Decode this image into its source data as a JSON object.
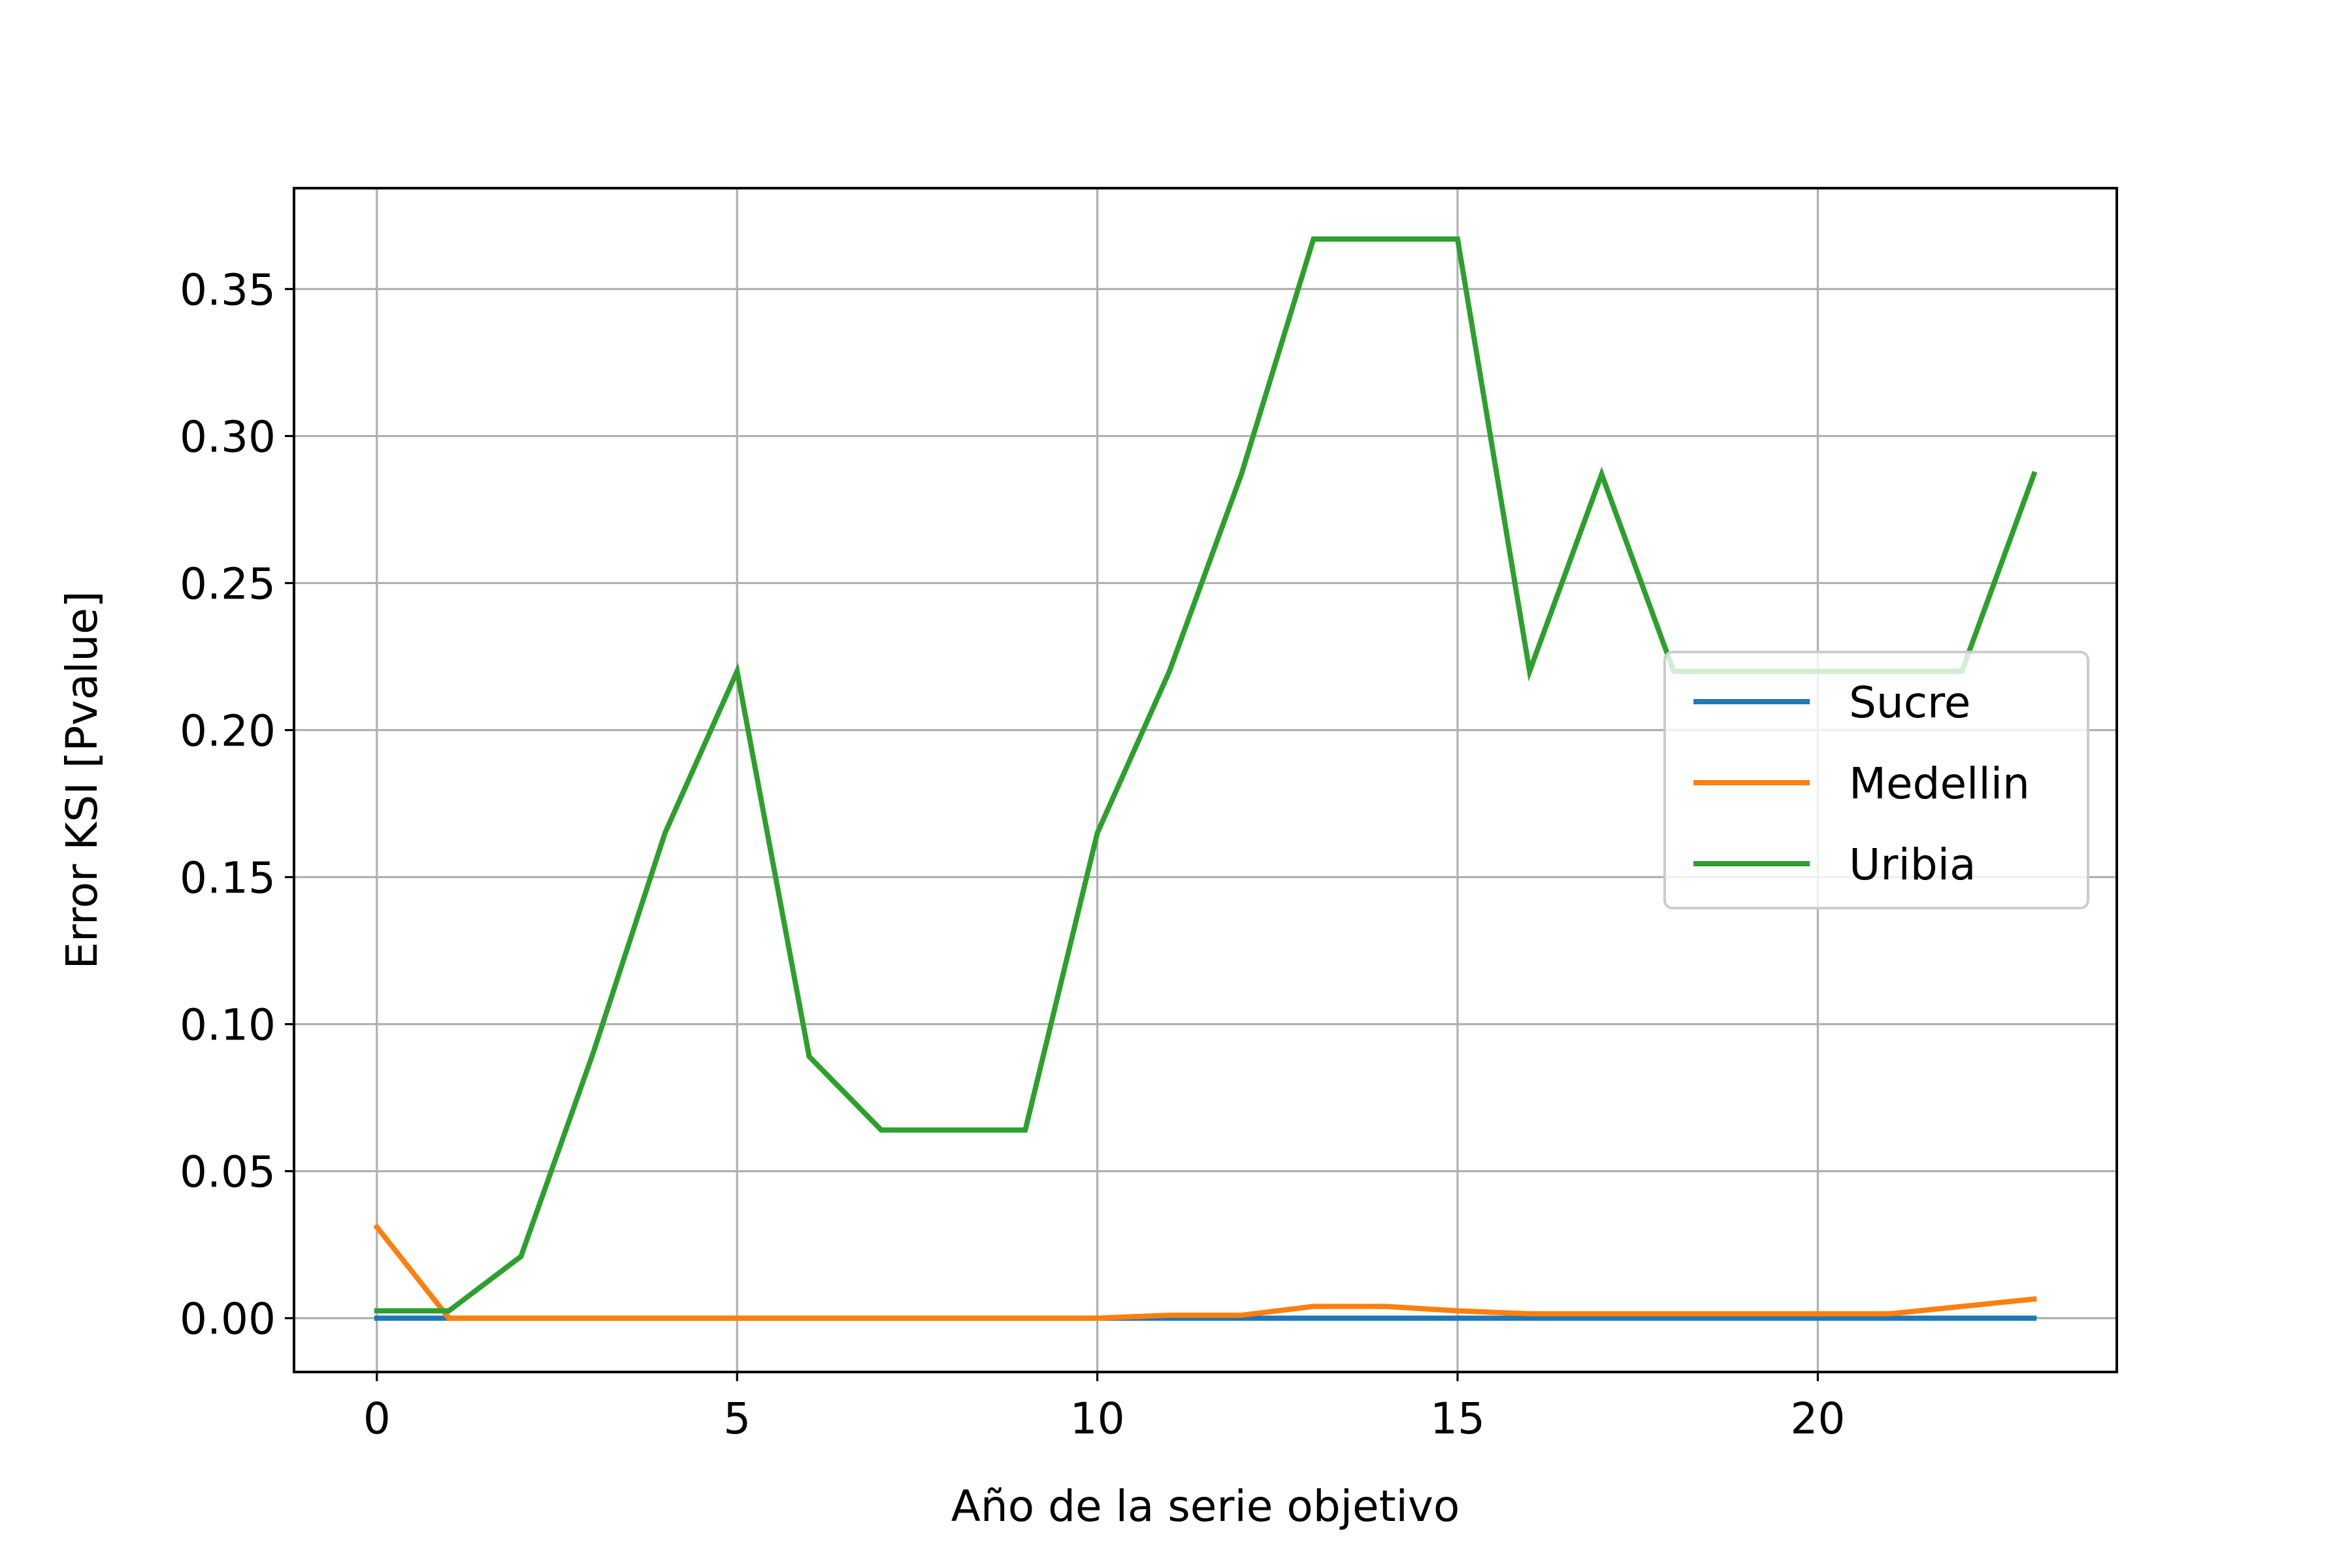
{
  "chart_data": {
    "type": "line",
    "title": "",
    "xlabel": "Año de la serie objetivo",
    "ylabel": "Error KSI [Pvalue]",
    "xlim": [
      -1.15,
      24.15
    ],
    "ylim": [
      -0.0183,
      0.3843
    ],
    "xticks": [
      0,
      5,
      10,
      15,
      20
    ],
    "xtick_labels": [
      "0",
      "5",
      "10",
      "15",
      "20"
    ],
    "yticks": [
      0.0,
      0.05,
      0.1,
      0.15,
      0.2,
      0.25,
      0.3,
      0.35
    ],
    "ytick_labels": [
      "0.00",
      "0.05",
      "0.10",
      "0.15",
      "0.20",
      "0.25",
      "0.30",
      "0.35"
    ],
    "grid": true,
    "legend_position": "center-right",
    "x": [
      0,
      1,
      2,
      3,
      4,
      5,
      6,
      7,
      8,
      9,
      10,
      11,
      12,
      13,
      14,
      15,
      16,
      17,
      18,
      19,
      20,
      21,
      22,
      23
    ],
    "series": [
      {
        "name": "Sucre",
        "color": "#1f77b4",
        "values": [
          0,
          0,
          0,
          0,
          0,
          0,
          0,
          0,
          0,
          0,
          0,
          0,
          0,
          0,
          0,
          0,
          0,
          0,
          0,
          0,
          0,
          0,
          0,
          0
        ]
      },
      {
        "name": "Medellin",
        "color": "#ff7f0e",
        "values": [
          0.031,
          0.0,
          0.0,
          0.0,
          0.0,
          0.0,
          0.0,
          0.0,
          0.0,
          0.0,
          0.0,
          0.001,
          0.001,
          0.004,
          0.004,
          0.0025,
          0.0015,
          0.0015,
          0.0015,
          0.0015,
          0.0015,
          0.0015,
          0.004,
          0.0065
        ]
      },
      {
        "name": "Uribia",
        "color": "#2ca02c",
        "values": [
          0.0025,
          0.0025,
          0.021,
          0.09,
          0.165,
          0.22,
          0.089,
          0.064,
          0.064,
          0.064,
          0.165,
          0.22,
          0.287,
          0.367,
          0.367,
          0.367,
          0.22,
          0.287,
          0.22,
          0.22,
          0.22,
          0.22,
          0.22,
          0.287
        ]
      }
    ]
  }
}
